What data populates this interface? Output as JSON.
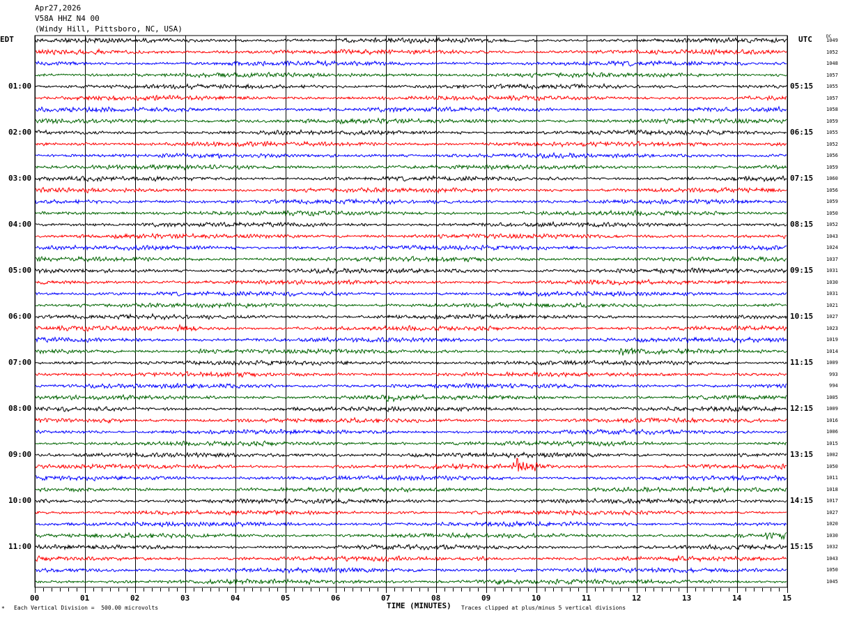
{
  "header": {
    "date": "Apr27,2026",
    "station": "V58A HHZ N4 00",
    "location": "(Windy Hill, Pittsboro, NC, USA)"
  },
  "footer": {
    "corner_mark": "*",
    "scale_note": "Each Vertical Division =  500.00 microvolts",
    "clip_note": "Traces clipped at plus/minus 5 vertical divisions"
  },
  "chart_data": {
    "type": "line",
    "xlabel": "TIME (MINUTES)",
    "xlim": [
      0,
      15
    ],
    "x_ticks": [
      "00",
      "01",
      "02",
      "03",
      "04",
      "05",
      "06",
      "07",
      "08",
      "09",
      "10",
      "11",
      "12",
      "13",
      "14",
      "15"
    ],
    "left_axis_title": "EDT",
    "right_axis_title": "UTC",
    "dc_title": "DC",
    "trace_colors": [
      "#000000",
      "#ff0000",
      "#0000ff",
      "#006400"
    ],
    "grid": true,
    "left_hour_labels": [
      "01:00",
      "02:00",
      "03:00",
      "04:00",
      "05:00",
      "06:00",
      "07:00",
      "08:00",
      "09:00",
      "10:00",
      "11:00"
    ],
    "right_hour_labels": [
      "05:15",
      "06:15",
      "07:15",
      "08:15",
      "09:15",
      "10:15",
      "11:15",
      "12:15",
      "13:15",
      "14:15",
      "15:15"
    ],
    "dc_values": [
      "1049",
      "1052",
      "1048",
      "1057",
      "1055",
      "1057",
      "1058",
      "1059",
      "1055",
      "1052",
      "1056",
      "1059",
      "1060",
      "1056",
      "1059",
      "1050",
      "1052",
      "1043",
      "1024",
      "1037",
      "1031",
      "1030",
      "1031",
      "1021",
      "1027",
      "1023",
      "1019",
      "1014",
      "1009",
      "993",
      "994",
      "1005",
      "1009",
      "1016",
      "1006",
      "1015",
      "1002",
      "1050",
      "1011",
      "1018",
      "1017",
      "1027",
      "1020",
      "1030",
      "1032",
      "1043",
      "1050",
      "1045"
    ],
    "events": [
      {
        "trace": 1,
        "minute": 1.1,
        "amplitude": 2
      },
      {
        "trace": 9,
        "minute": 14.7,
        "amplitude": 2.5
      },
      {
        "trace": 25,
        "minute": 2.9,
        "amplitude": 2.5
      },
      {
        "trace": 27,
        "minute": 3.3,
        "amplitude": 2
      },
      {
        "trace": 27,
        "minute": 11.7,
        "amplitude": 2.5
      },
      {
        "trace": 31,
        "minute": 7.0,
        "amplitude": 2
      },
      {
        "trace": 33,
        "minute": 1.4,
        "amplitude": 2
      },
      {
        "trace": 37,
        "minute": 9.6,
        "amplitude": 6
      },
      {
        "trace": 43,
        "minute": 14.6,
        "amplitude": 2.5
      },
      {
        "trace": 45,
        "minute": 8.8,
        "amplitude": 2
      },
      {
        "trace": 47,
        "minute": 9.2,
        "amplitude": 2.5
      }
    ]
  }
}
